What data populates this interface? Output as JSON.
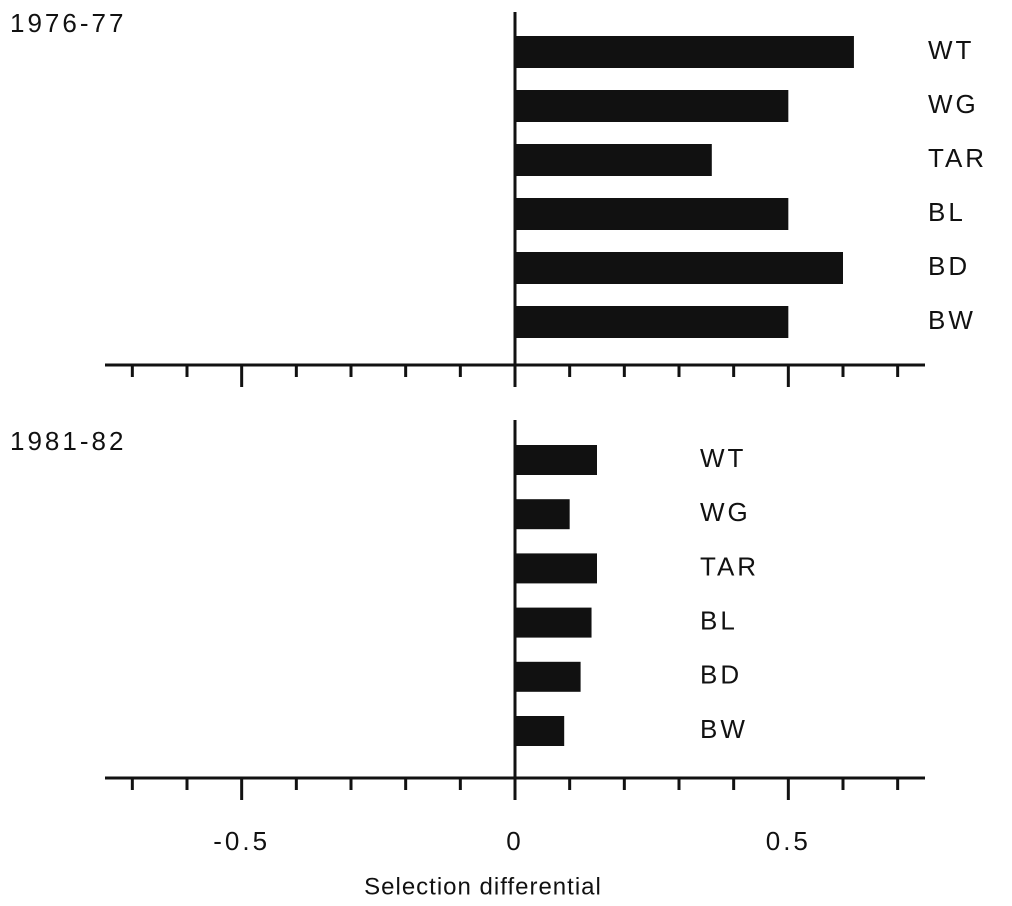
{
  "chart_data": [
    {
      "type": "bar",
      "orientation": "horizontal",
      "title": "1976-77",
      "categories": [
        "WT",
        "WG",
        "TAR",
        "BL",
        "BD",
        "BW"
      ],
      "values": [
        0.62,
        0.5,
        0.36,
        0.5,
        0.6,
        0.5
      ],
      "color": "#111111",
      "xlim": [
        -0.75,
        0.75
      ],
      "xticks": [
        -0.5,
        0,
        0.5
      ],
      "xminor_ticks": [
        -0.7,
        -0.6,
        -0.4,
        -0.3,
        -0.2,
        -0.1,
        0.1,
        0.2,
        0.3,
        0.4,
        0.6,
        0.7
      ],
      "tick_labels": false
    },
    {
      "type": "bar",
      "orientation": "horizontal",
      "title": "1981-82",
      "categories": [
        "WT",
        "WG",
        "TAR",
        "BL",
        "BD",
        "BW"
      ],
      "values": [
        0.15,
        0.1,
        0.15,
        0.14,
        0.12,
        0.09
      ],
      "color": "#111111",
      "xlim": [
        -0.75,
        0.75
      ],
      "xticks": [
        -0.5,
        0,
        0.5
      ],
      "xminor_ticks": [
        -0.7,
        -0.6,
        -0.4,
        -0.3,
        -0.2,
        -0.1,
        0.1,
        0.2,
        0.3,
        0.4,
        0.6,
        0.7
      ],
      "tick_labels": true,
      "xlabel": "Selection differential"
    }
  ]
}
